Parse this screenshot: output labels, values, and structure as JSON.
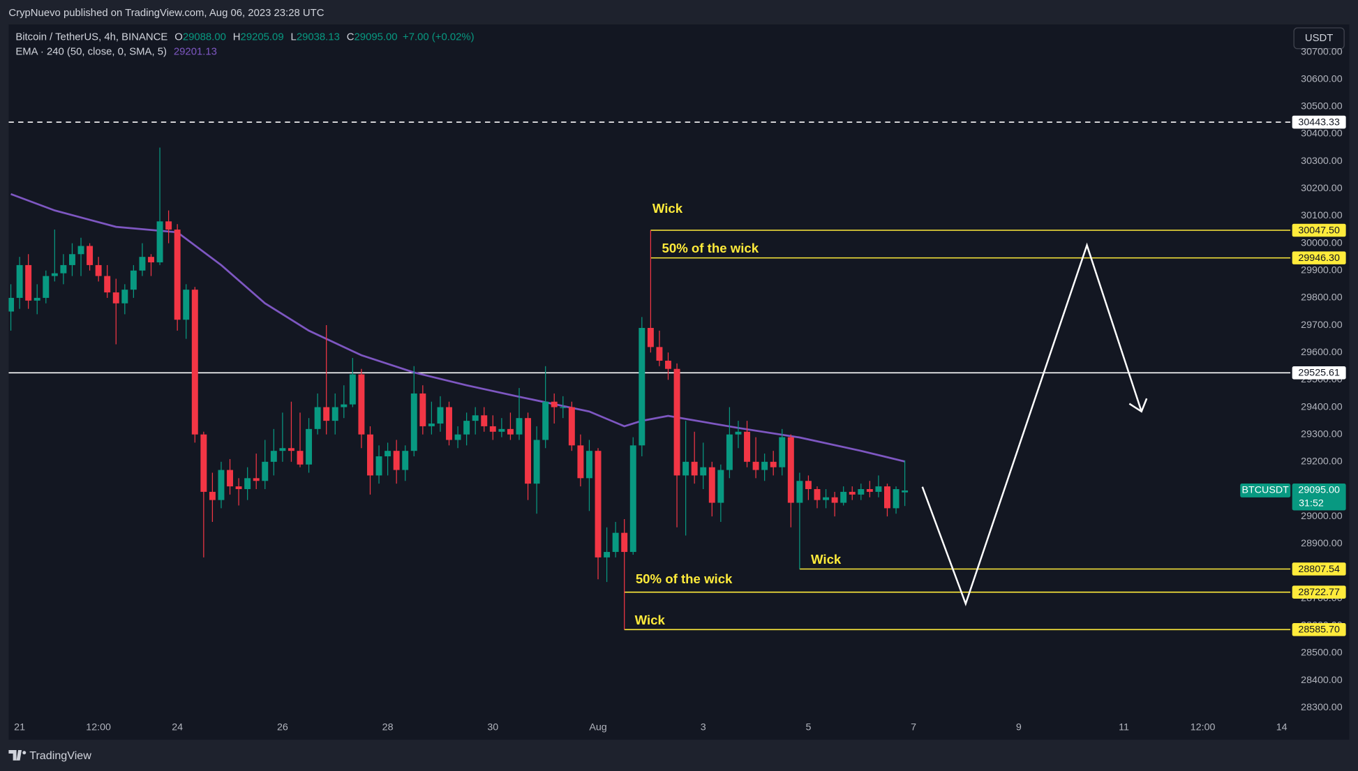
{
  "page": {
    "publisher": "CrypNuevo published on TradingView.com, Aug 06, 2023 23:28 UTC",
    "brand": "TradingView",
    "currency": "USDT"
  },
  "chart_data": {
    "type": "candlestick",
    "legend": {
      "symbol": "Bitcoin / TetherUS, 4h, BINANCE",
      "open": {
        "key": "O",
        "value": "29088.00"
      },
      "high": {
        "key": "H",
        "value": "29205.09"
      },
      "low": {
        "key": "L",
        "value": "29038.13"
      },
      "close": {
        "key": "C",
        "value": "29095.00"
      },
      "change": "+7.00 (+0.02%)"
    },
    "up_color": "#089981",
    "down_color": "#f23645",
    "x": [
      -4,
      0,
      4,
      8,
      12,
      16,
      20,
      24,
      28,
      32,
      36,
      40,
      44,
      48,
      52,
      56,
      60,
      64,
      68,
      72,
      76,
      80,
      84,
      88,
      92,
      96,
      100,
      104,
      108,
      112,
      116,
      120,
      124,
      128,
      132,
      136,
      140,
      144,
      148,
      152,
      156,
      160,
      164,
      168,
      172,
      176,
      180,
      184,
      188,
      192,
      196,
      200,
      204,
      208,
      212,
      216,
      220,
      224,
      228,
      232,
      236,
      240,
      244,
      248,
      252,
      256,
      260,
      264,
      268,
      272,
      276,
      280,
      284,
      288,
      292,
      296,
      300,
      304,
      308,
      312,
      316,
      320,
      324,
      328,
      332,
      336,
      340,
      344,
      348,
      352,
      356,
      360,
      364,
      368,
      372,
      376,
      380,
      384,
      388,
      392,
      396,
      400,
      404
    ],
    "open": [
      29750,
      29800,
      29920,
      29790,
      29800,
      29880,
      29890,
      29920,
      29960,
      29990,
      29920,
      29880,
      29820,
      29780,
      29830,
      29900,
      29950,
      29930,
      30080,
      30050,
      29720,
      29830,
      29300,
      29090,
      29060,
      29170,
      29110,
      29100,
      29140,
      29130,
      29200,
      29240,
      29250,
      29240,
      29190,
      29320,
      29400,
      29350,
      29400,
      29410,
      29520,
      29300,
      29150,
      29220,
      29240,
      29170,
      29240,
      29450,
      29330,
      29340,
      29400,
      29280,
      29300,
      29350,
      29370,
      29330,
      29310,
      29320,
      29300,
      29360,
      29120,
      29280,
      29420,
      29400,
      29400,
      29260,
      29140,
      29240,
      28850,
      28870,
      28940,
      28870,
      29260,
      29690,
      29620,
      29570,
      29540,
      29150,
      29200,
      29150,
      29180,
      29050,
      29170,
      29300,
      29310,
      29200,
      29170,
      29200,
      29180,
      29290,
      29050,
      29130,
      29100,
      29060,
      29070,
      29050,
      29090,
      29080,
      29100,
      29090,
      29110,
      29030,
      29088
    ],
    "high": [
      29850,
      29950,
      29960,
      29850,
      29900,
      30050,
      29960,
      30000,
      30020,
      30000,
      29950,
      29920,
      29870,
      29850,
      29920,
      30000,
      29960,
      30350,
      30120,
      30070,
      29850,
      29840,
      29310,
      29160,
      29200,
      29210,
      29140,
      29180,
      29230,
      29280,
      29320,
      29380,
      29420,
      29380,
      29360,
      29450,
      29700,
      29450,
      29480,
      29580,
      29540,
      29330,
      29260,
      29270,
      29280,
      29260,
      29550,
      29480,
      29420,
      29440,
      29420,
      29330,
      29380,
      29400,
      29400,
      29370,
      29360,
      29380,
      29470,
      29380,
      29330,
      29550,
      29450,
      29440,
      29420,
      29300,
      29280,
      29250,
      28960,
      28980,
      28990,
      29290,
      29730,
      30047.5,
      29680,
      29600,
      29560,
      29350,
      29310,
      29270,
      29200,
      29190,
      29400,
      29350,
      29350,
      29290,
      29230,
      29240,
      29320,
      29300,
      29160,
      29150,
      29110,
      29100,
      29090,
      29110,
      29110,
      29120,
      29130,
      29150,
      29120,
      29110,
      29205.09
    ],
    "low": [
      29680,
      29760,
      29760,
      29740,
      29780,
      29860,
      29850,
      29880,
      29880,
      29900,
      29860,
      29800,
      29630,
      29740,
      29800,
      29880,
      29880,
      29920,
      30000,
      29680,
      29650,
      29270,
      28850,
      28980,
      29030,
      29080,
      29040,
      29060,
      29100,
      29100,
      29150,
      29200,
      29200,
      29180,
      29160,
      29300,
      29300,
      29300,
      29360,
      29400,
      29250,
      29080,
      29120,
      29150,
      29120,
      29130,
      29220,
      29300,
      29300,
      29310,
      29260,
      29250,
      29260,
      29300,
      29310,
      29280,
      29290,
      29280,
      29280,
      29060,
      29010,
      29250,
      29340,
      29360,
      29240,
      29110,
      29020,
      28770,
      28760,
      28850,
      28585.7,
      28860,
      29220,
      29600,
      29550,
      29500,
      28960,
      28930,
      29120,
      29100,
      29000,
      28980,
      29140,
      29250,
      29180,
      29140,
      29130,
      29150,
      29150,
      28960,
      28807.54,
      29060,
      29030,
      29030,
      29000,
      29040,
      29060,
      29060,
      29070,
      29070,
      29000,
      29010,
      29038.13
    ],
    "close": [
      29800,
      29920,
      29790,
      29800,
      29880,
      29890,
      29920,
      29960,
      29990,
      29920,
      29880,
      29820,
      29780,
      29830,
      29900,
      29950,
      29930,
      30080,
      30050,
      29720,
      29830,
      29300,
      29090,
      29060,
      29170,
      29110,
      29100,
      29140,
      29130,
      29200,
      29240,
      29250,
      29240,
      29190,
      29320,
      29400,
      29350,
      29400,
      29410,
      29520,
      29300,
      29150,
      29220,
      29240,
      29170,
      29240,
      29450,
      29330,
      29340,
      29400,
      29280,
      29300,
      29350,
      29370,
      29330,
      29310,
      29320,
      29300,
      29360,
      29120,
      29280,
      29420,
      29400,
      29400,
      29260,
      29140,
      29240,
      28850,
      28870,
      28940,
      28870,
      29260,
      29690,
      29620,
      29570,
      29540,
      29150,
      29200,
      29150,
      29180,
      29050,
      29170,
      29300,
      29310,
      29200,
      29170,
      29200,
      29180,
      29290,
      29050,
      29130,
      29100,
      29060,
      29070,
      29050,
      29090,
      29080,
      29100,
      29090,
      29110,
      29030,
      29100,
      29095
    ],
    "ema": {
      "name": "EMA · 240 (50, close, 0, SMA, 5)",
      "last_label": "29201.13",
      "color": "#7e57c2",
      "x": [
        -4,
        16,
        44,
        72,
        92,
        112,
        132,
        156,
        180,
        204,
        228,
        260,
        276,
        284,
        296,
        328,
        356,
        384,
        404
      ],
      "values": [
        30180,
        30120,
        30060,
        30040,
        29920,
        29780,
        29680,
        29590,
        29527,
        29480,
        29438,
        29384,
        29330,
        29350,
        29368,
        29324,
        29289,
        29240,
        29201.13
      ]
    },
    "levels": [
      {
        "value": 30443.33,
        "label": "30443.33",
        "color": "#ffffff",
        "style": "dashed"
      },
      {
        "value": 29525.61,
        "label": "29525.61",
        "color": "#ffffff",
        "style": "solid"
      },
      {
        "value": 30047.5,
        "label": "30047.50",
        "color": "#ffeb3b",
        "style": "solid",
        "from_x": 288,
        "text": "Wick"
      },
      {
        "value": 29946.3,
        "label": "29946.30",
        "color": "#ffeb3b",
        "style": "solid",
        "from_x": 288,
        "text": "50% of the wick"
      },
      {
        "value": 28807.54,
        "label": "28807.54",
        "color": "#ffeb3b",
        "style": "solid",
        "from_x": 356,
        "text": "Wick"
      },
      {
        "value": 28722.77,
        "label": "28722.77",
        "color": "#ffeb3b",
        "style": "solid",
        "from_x": 276,
        "text": "50% of the wick"
      },
      {
        "value": 28585.7,
        "label": "28585.70",
        "color": "#ffeb3b",
        "style": "solid",
        "from_x": 276,
        "text": "Wick"
      }
    ],
    "last": {
      "symbol": "BTCUSDT",
      "value": 29095,
      "label": "29095.00",
      "countdown": "31:52"
    },
    "xlim": [
      -5,
      580
    ],
    "xticks": [
      {
        "value": 0,
        "label": "21"
      },
      {
        "value": 36,
        "label": "12:00"
      },
      {
        "value": 72,
        "label": "24"
      },
      {
        "value": 120,
        "label": "26"
      },
      {
        "value": 168,
        "label": "28"
      },
      {
        "value": 216,
        "label": "30"
      },
      {
        "value": 264,
        "label": "Aug"
      },
      {
        "value": 312,
        "label": "3"
      },
      {
        "value": 360,
        "label": "5"
      },
      {
        "value": 408,
        "label": "7"
      },
      {
        "value": 456,
        "label": "9"
      },
      {
        "value": 504,
        "label": "11"
      },
      {
        "value": 540,
        "label": "12:00"
      },
      {
        "value": 576,
        "label": "14"
      }
    ],
    "ylim": [
      28186,
      30801
    ],
    "yticks": [
      {
        "value": 30700,
        "label": "30700.00"
      },
      {
        "value": 30600,
        "label": "30600.00"
      },
      {
        "value": 30500,
        "label": "30500.00"
      },
      {
        "value": 30400,
        "label": "30400.00"
      },
      {
        "value": 30300,
        "label": "30300.00"
      },
      {
        "value": 30200,
        "label": "30200.00"
      },
      {
        "value": 30100,
        "label": "30100.00"
      },
      {
        "value": 30000,
        "label": "30000.00"
      },
      {
        "value": 29900,
        "label": "29900.00"
      },
      {
        "value": 29800,
        "label": "29800.00"
      },
      {
        "value": 29700,
        "label": "29700.00"
      },
      {
        "value": 29600,
        "label": "29600.00"
      },
      {
        "value": 29500,
        "label": "29500.00"
      },
      {
        "value": 29400,
        "label": "29400.00"
      },
      {
        "value": 29300,
        "label": "29300.00"
      },
      {
        "value": 29200,
        "label": "29200.00"
      },
      {
        "value": 29100,
        "label": "29100.00"
      },
      {
        "value": 29000,
        "label": "29000.00"
      },
      {
        "value": 28900,
        "label": "28900.00"
      },
      {
        "value": 28800,
        "label": "28800.00"
      },
      {
        "value": 28700,
        "label": "28700.00"
      },
      {
        "value": 28600,
        "label": "28600.00"
      },
      {
        "value": 28500,
        "label": "28500.00"
      },
      {
        "value": 28400,
        "label": "28400.00"
      },
      {
        "value": 28300,
        "label": "28300.00"
      }
    ],
    "grid": false
  }
}
